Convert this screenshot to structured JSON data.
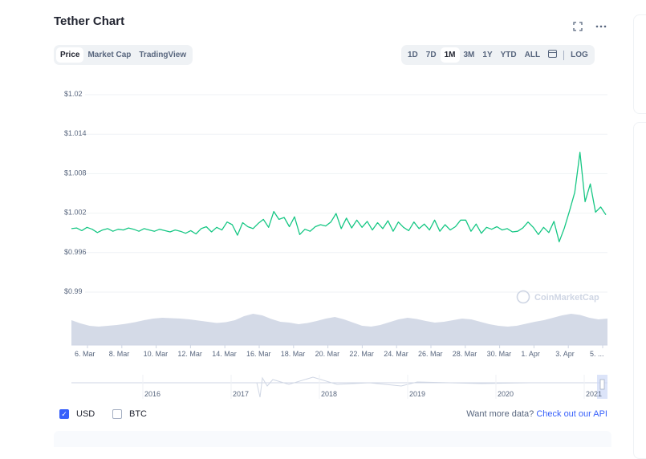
{
  "header": {
    "title": "Tether Chart",
    "fullscreen_icon": "expand-icon",
    "menu_icon": "more-horizontal-icon"
  },
  "type_tabs": [
    "Price",
    "Market Cap",
    "TradingView"
  ],
  "type_active": 0,
  "range_tabs": [
    "1D",
    "7D",
    "1M",
    "3M",
    "1Y",
    "YTD",
    "ALL"
  ],
  "range_active": 2,
  "log_label": "LOG",
  "calendar_icon": "calendar-icon",
  "watermark": "CoinMarketCap",
  "colors": {
    "line": "#16c784",
    "volume": "#cfd6e4",
    "accent": "#3861fb"
  },
  "footer": {
    "usd_label": "USD",
    "usd_checked": true,
    "btc_label": "BTC",
    "btc_checked": false,
    "more_text": "Want more data?",
    "more_link": "Check out our API"
  },
  "chart_data": {
    "type": "line",
    "series": [
      {
        "values": [
          0.9994,
          0.9995,
          0.9991,
          0.9996,
          0.9993,
          0.9988,
          0.9992,
          0.9994,
          0.999,
          0.9993,
          0.9992,
          0.9995,
          0.9993,
          0.999,
          0.9994,
          0.9992,
          0.999,
          0.9993,
          0.9991,
          0.9989,
          0.9992,
          0.999,
          0.9987,
          0.9991,
          0.9986,
          0.9994,
          0.9997,
          0.9989,
          0.9996,
          0.9992,
          1.0004,
          1.0,
          0.9984,
          1.0003,
          0.9997,
          0.9994,
          1.0002,
          1.0008,
          0.9996,
          1.002,
          1.0008,
          1.0011,
          0.9997,
          1.0012,
          0.9985,
          0.9993,
          0.999,
          0.9997,
          1.0,
          0.9998,
          1.0004,
          1.0017,
          0.9994,
          1.001,
          0.9995,
          1.0007,
          0.9996,
          1.0005,
          0.9992,
          1.0003,
          0.9994,
          1.0006,
          0.999,
          1.0004,
          0.9996,
          0.9991,
          1.0004,
          0.9994,
          1.0001,
          0.9992,
          1.0007,
          0.999,
          1.0,
          0.9992,
          0.9997,
          1.0007,
          1.0007,
          0.999,
          1.0001,
          0.9987,
          0.9996,
          0.9993,
          0.9997,
          0.9992,
          0.9994,
          0.9989,
          0.999,
          0.9995,
          1.0004,
          0.9996,
          0.9985,
          0.9996,
          0.9988,
          1.0005,
          0.9974,
          0.9995,
          1.0021,
          1.0049,
          1.011,
          1.0035,
          1.0062,
          1.0019,
          1.0027,
          1.0015
        ]
      }
    ],
    "yticks": [
      "$1.02",
      "$1.014",
      "$1.008",
      "$1.002",
      "$0.996",
      "$0.99"
    ],
    "ytick_values": [
      1.02,
      1.014,
      1.008,
      1.002,
      0.996,
      0.99
    ],
    "xticks": [
      "6. Mar",
      "8. Mar",
      "10. Mar",
      "12. Mar",
      "14. Mar",
      "16. Mar",
      "18. Mar",
      "20. Mar",
      "22. Mar",
      "24. Mar",
      "26. Mar",
      "28. Mar",
      "30. Mar",
      "1. Apr",
      "3. Apr",
      "5. ..."
    ],
    "ylim": [
      0.99,
      1.02
    ],
    "grid": true,
    "volume": [
      0.62,
      0.54,
      0.48,
      0.46,
      0.48,
      0.5,
      0.53,
      0.57,
      0.62,
      0.66,
      0.68,
      0.67,
      0.66,
      0.64,
      0.61,
      0.58,
      0.55,
      0.57,
      0.62,
      0.72,
      0.78,
      0.74,
      0.65,
      0.58,
      0.56,
      0.52,
      0.55,
      0.6,
      0.66,
      0.7,
      0.64,
      0.56,
      0.48,
      0.46,
      0.5,
      0.57,
      0.64,
      0.68,
      0.65,
      0.6,
      0.56,
      0.58,
      0.62,
      0.66,
      0.64,
      0.58,
      0.52,
      0.48,
      0.46,
      0.48,
      0.53,
      0.58,
      0.62,
      0.68,
      0.74,
      0.78,
      0.75,
      0.68,
      0.64,
      0.66
    ],
    "navigator_ticks": [
      "2016",
      "2017",
      "2018",
      "2019",
      "2020",
      "2021"
    ]
  }
}
